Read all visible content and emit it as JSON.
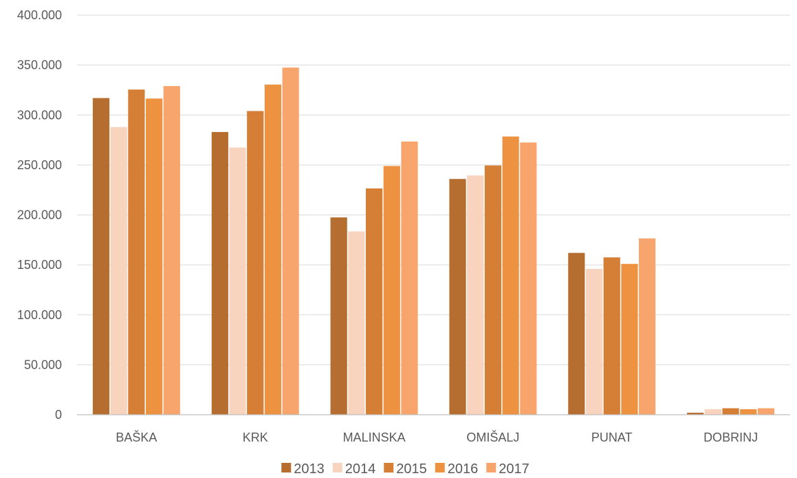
{
  "chart_data": {
    "type": "bar",
    "title": "",
    "xlabel": "",
    "ylabel": "",
    "categories": [
      "BAŠKA",
      "KRK",
      "MALINSKA",
      "OMIŠALJ",
      "PUNAT",
      "DOBRINJ"
    ],
    "ylim": [
      0,
      400000
    ],
    "y_ticks": [
      0,
      50000,
      100000,
      150000,
      200000,
      250000,
      300000,
      350000,
      400000
    ],
    "y_tick_labels": [
      "0",
      "50.000",
      "100.000",
      "150.000",
      "200.000",
      "250.000",
      "300.000",
      "350.000",
      "400.000"
    ],
    "grid": true,
    "legend_position": "bottom",
    "series": [
      {
        "name": "2013",
        "color": "#B56D30",
        "values": [
          317000,
          283000,
          197500,
          236000,
          162000,
          2000
        ]
      },
      {
        "name": "2014",
        "color": "#F8D3BD",
        "values": [
          288000,
          267500,
          183500,
          239500,
          146000,
          5500
        ]
      },
      {
        "name": "2015",
        "color": "#D47E36",
        "values": [
          325500,
          304000,
          226500,
          249500,
          157500,
          6500
        ]
      },
      {
        "name": "2016",
        "color": "#ED9240",
        "values": [
          316500,
          330500,
          249000,
          278500,
          151000,
          5500
        ]
      },
      {
        "name": "2017",
        "color": "#F7A56C",
        "values": [
          329000,
          347500,
          273500,
          272500,
          176500,
          6500
        ]
      }
    ]
  }
}
